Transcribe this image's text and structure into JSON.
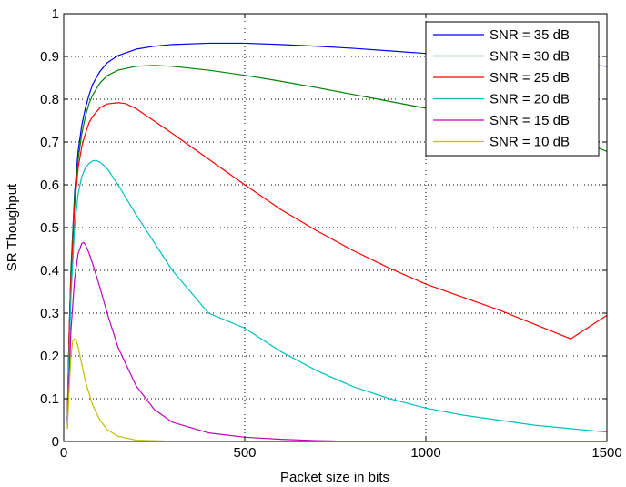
{
  "chart_data": {
    "type": "line",
    "title": "",
    "xlabel": "Packet size in bits",
    "ylabel": "SR Thoughput",
    "xlim": [
      0,
      1500
    ],
    "ylim": [
      0,
      1
    ],
    "xticks": [
      0,
      500,
      1000,
      1500
    ],
    "yticks": [
      0,
      0.1,
      0.2,
      0.3,
      0.4,
      0.5,
      0.6,
      0.7,
      0.8,
      0.9,
      1
    ],
    "xtick_labels": [
      "0",
      "500",
      "1000",
      "1500"
    ],
    "ytick_labels": [
      "0",
      "0.1",
      "0.2",
      "0.3",
      "0.4",
      "0.5",
      "0.6",
      "0.7",
      "0.8",
      "0.9",
      "1"
    ],
    "grid": true,
    "grid_style": "dotted",
    "legend_position": "top-right",
    "series": [
      {
        "name": "SNR = 35 dB",
        "color": "#0000ff",
        "points": [
          [
            10,
            0.05
          ],
          [
            15,
            0.25
          ],
          [
            20,
            0.4
          ],
          [
            30,
            0.58
          ],
          [
            40,
            0.68
          ],
          [
            50,
            0.74
          ],
          [
            60,
            0.78
          ],
          [
            70,
            0.81
          ],
          [
            80,
            0.835
          ],
          [
            100,
            0.865
          ],
          [
            120,
            0.885
          ],
          [
            150,
            0.902
          ],
          [
            200,
            0.917
          ],
          [
            250,
            0.924
          ],
          [
            300,
            0.928
          ],
          [
            400,
            0.931
          ],
          [
            500,
            0.931
          ],
          [
            600,
            0.928
          ],
          [
            700,
            0.924
          ],
          [
            800,
            0.919
          ],
          [
            900,
            0.913
          ],
          [
            1000,
            0.907
          ],
          [
            1100,
            0.901
          ],
          [
            1200,
            0.895
          ],
          [
            1300,
            0.889
          ],
          [
            1400,
            0.883
          ],
          [
            1500,
            0.877
          ]
        ]
      },
      {
        "name": "SNR = 30 dB",
        "color": "#008000",
        "points": [
          [
            10,
            0.05
          ],
          [
            15,
            0.25
          ],
          [
            20,
            0.4
          ],
          [
            30,
            0.57
          ],
          [
            40,
            0.66
          ],
          [
            50,
            0.72
          ],
          [
            60,
            0.76
          ],
          [
            70,
            0.79
          ],
          [
            80,
            0.81
          ],
          [
            100,
            0.838
          ],
          [
            120,
            0.855
          ],
          [
            150,
            0.868
          ],
          [
            200,
            0.877
          ],
          [
            250,
            0.879
          ],
          [
            300,
            0.877
          ],
          [
            400,
            0.868
          ],
          [
            500,
            0.856
          ],
          [
            600,
            0.842
          ],
          [
            700,
            0.827
          ],
          [
            800,
            0.811
          ],
          [
            900,
            0.795
          ],
          [
            1000,
            0.779
          ],
          [
            1100,
            0.762
          ],
          [
            1200,
            0.745
          ],
          [
            1300,
            0.728
          ],
          [
            1400,
            0.711
          ],
          [
            1500,
            0.678
          ]
        ]
      },
      {
        "name": "SNR = 25 dB",
        "color": "#ff0000",
        "points": [
          [
            10,
            0.05
          ],
          [
            15,
            0.25
          ],
          [
            20,
            0.38
          ],
          [
            30,
            0.55
          ],
          [
            40,
            0.64
          ],
          [
            50,
            0.69
          ],
          [
            60,
            0.72
          ],
          [
            70,
            0.745
          ],
          [
            80,
            0.76
          ],
          [
            100,
            0.78
          ],
          [
            120,
            0.789
          ],
          [
            150,
            0.792
          ],
          [
            170,
            0.79
          ],
          [
            200,
            0.778
          ],
          [
            300,
            0.72
          ],
          [
            400,
            0.66
          ],
          [
            500,
            0.6
          ],
          [
            600,
            0.542
          ],
          [
            700,
            0.492
          ],
          [
            800,
            0.446
          ],
          [
            900,
            0.405
          ],
          [
            1000,
            0.368
          ],
          [
            1100,
            0.338
          ],
          [
            1200,
            0.308
          ],
          [
            1300,
            0.274
          ],
          [
            1400,
            0.24
          ],
          [
            1500,
            0.295
          ]
        ]
      },
      {
        "name": "SNR = 20 dB",
        "color": "#00c0c0",
        "points": [
          [
            10,
            0.04
          ],
          [
            15,
            0.2
          ],
          [
            20,
            0.34
          ],
          [
            30,
            0.5
          ],
          [
            40,
            0.58
          ],
          [
            50,
            0.62
          ],
          [
            60,
            0.64
          ],
          [
            70,
            0.65
          ],
          [
            80,
            0.656
          ],
          [
            90,
            0.657
          ],
          [
            100,
            0.653
          ],
          [
            120,
            0.638
          ],
          [
            150,
            0.6
          ],
          [
            200,
            0.53
          ],
          [
            300,
            0.4
          ],
          [
            400,
            0.3
          ],
          [
            500,
            0.265
          ],
          [
            600,
            0.21
          ],
          [
            700,
            0.165
          ],
          [
            800,
            0.128
          ],
          [
            900,
            0.1
          ],
          [
            1000,
            0.078
          ],
          [
            1100,
            0.062
          ],
          [
            1200,
            0.05
          ],
          [
            1300,
            0.038
          ],
          [
            1400,
            0.03
          ],
          [
            1500,
            0.022
          ]
        ]
      },
      {
        "name": "SNR = 15 dB",
        "color": "#c000c0",
        "points": [
          [
            10,
            0.03
          ],
          [
            15,
            0.15
          ],
          [
            20,
            0.26
          ],
          [
            30,
            0.38
          ],
          [
            40,
            0.44
          ],
          [
            50,
            0.463
          ],
          [
            55,
            0.465
          ],
          [
            60,
            0.46
          ],
          [
            70,
            0.44
          ],
          [
            80,
            0.415
          ],
          [
            100,
            0.36
          ],
          [
            120,
            0.3
          ],
          [
            150,
            0.22
          ],
          [
            200,
            0.13
          ],
          [
            250,
            0.075
          ],
          [
            300,
            0.045
          ],
          [
            400,
            0.02
          ],
          [
            500,
            0.01
          ],
          [
            600,
            0.005
          ],
          [
            700,
            0.002
          ],
          [
            750,
            0.001
          ]
        ]
      },
      {
        "name": "SNR = 10 dB",
        "color": "#c0c000",
        "points": [
          [
            10,
            0.03
          ],
          [
            15,
            0.12
          ],
          [
            20,
            0.2
          ],
          [
            25,
            0.235
          ],
          [
            30,
            0.24
          ],
          [
            35,
            0.235
          ],
          [
            40,
            0.22
          ],
          [
            50,
            0.18
          ],
          [
            60,
            0.14
          ],
          [
            80,
            0.085
          ],
          [
            100,
            0.05
          ],
          [
            120,
            0.028
          ],
          [
            150,
            0.012
          ],
          [
            200,
            0.003
          ],
          [
            300,
            0.0005
          ],
          [
            500,
            0
          ],
          [
            1000,
            0
          ],
          [
            1500,
            0
          ]
        ]
      }
    ]
  }
}
